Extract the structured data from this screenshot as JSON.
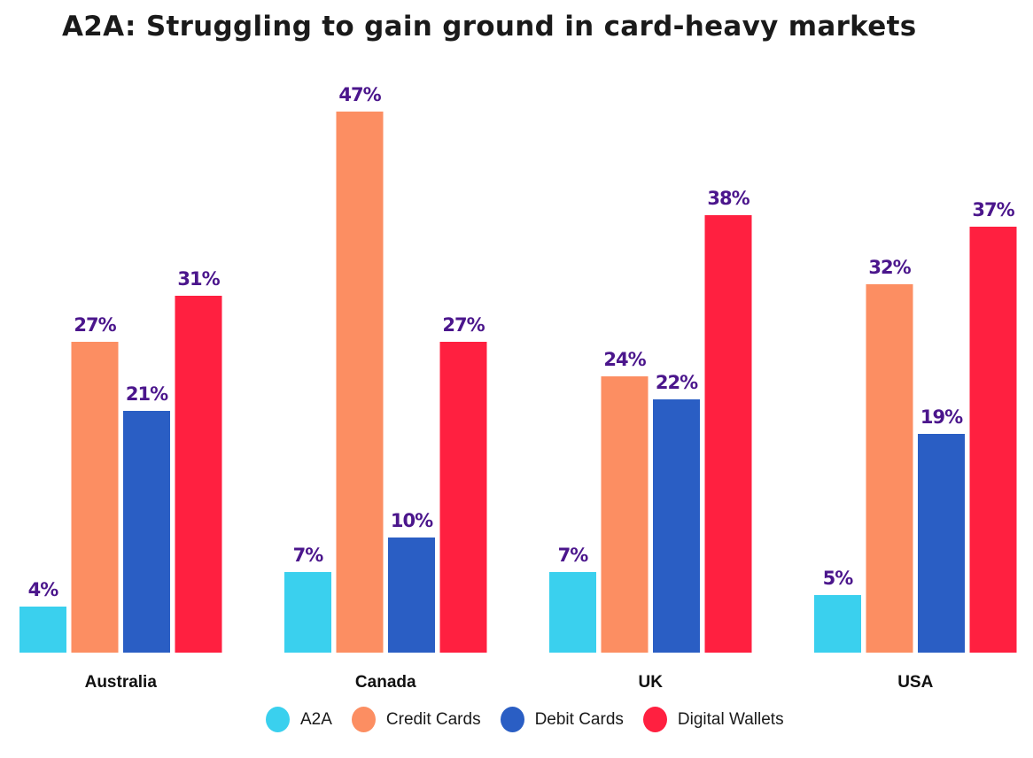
{
  "chart_data": {
    "type": "bar",
    "title": "A2A: Struggling to gain ground in card-heavy markets",
    "xlabel": "",
    "ylabel": "",
    "ylim": [
      0,
      47
    ],
    "grid": false,
    "legend_position": "bottom",
    "categories": [
      "Australia",
      "Canada",
      "UK",
      "USA"
    ],
    "series": [
      {
        "name": "A2A",
        "color": "#3ad0ee",
        "values": [
          4,
          7,
          7,
          5
        ]
      },
      {
        "name": "Credit Cards",
        "color": "#fc8e62",
        "values": [
          27,
          47,
          24,
          32
        ]
      },
      {
        "name": "Debit Cards",
        "color": "#2a5ec4",
        "values": [
          21,
          10,
          22,
          19
        ]
      },
      {
        "name": "Digital Wallets",
        "color": "#ff2040",
        "values": [
          31,
          27,
          38,
          37
        ]
      }
    ],
    "value_label_suffix": "%",
    "value_label_color": "#4b168c"
  }
}
